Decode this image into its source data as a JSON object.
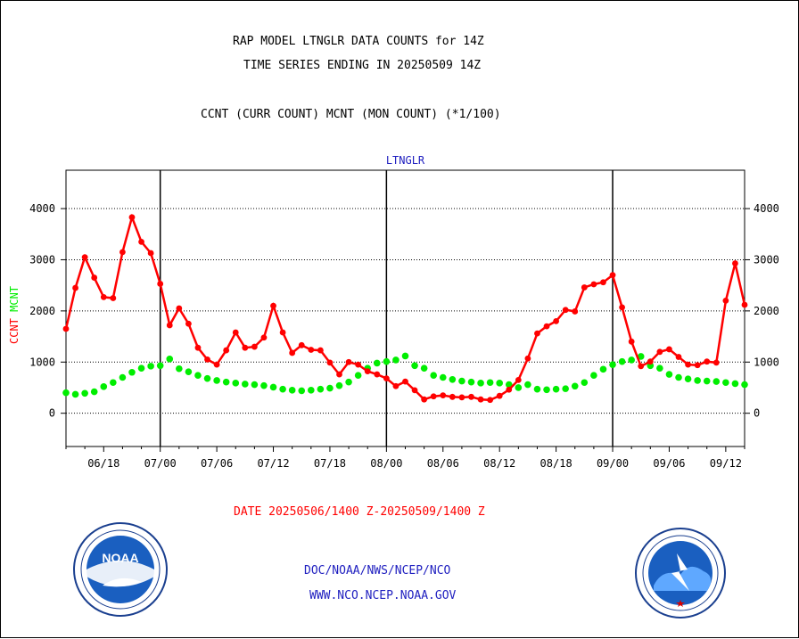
{
  "header": {
    "title_line1": "RAP MODEL LTNGLR DATA COUNTS for 14Z",
    "title_line2": "TIME SERIES ENDING IN 20250509 14Z",
    "subtitle": "CCNT (CURR COUNT) MCNT (MON COUNT) (*1/100)"
  },
  "footer": {
    "date_range": "DATE 20250506/1400 Z-20250509/1400 Z",
    "line1": "DOC/NOAA/NWS/NCEP/NCO",
    "line2": "WWW.NCO.NCEP.NOAA.GOV"
  },
  "logos": {
    "left": "noaa-logo",
    "right": "nws-logo",
    "left_text": "NOAA"
  },
  "chart_data": {
    "type": "line",
    "title": "LTNGLR",
    "ylabel_ccnt": "CCNT",
    "ylabel_mcnt": "MCNT",
    "x_tick_labels": [
      "06/18",
      "07/00",
      "07/06",
      "07/12",
      "07/18",
      "08/00",
      "08/06",
      "08/12",
      "08/18",
      "09/00",
      "09/06",
      "09/12"
    ],
    "y_ticks": [
      0,
      1000,
      2000,
      3000,
      4000
    ],
    "ylim": [
      -650,
      4750
    ],
    "x_start_hour": 14,
    "x_step_hours": 1,
    "day_boundaries_hours": [
      24,
      48,
      72
    ],
    "series": [
      {
        "name": "CCNT",
        "color": "#ff0000",
        "values": [
          1650,
          2450,
          3050,
          2650,
          2270,
          2250,
          3150,
          3830,
          3350,
          3130,
          2530,
          1720,
          2050,
          1750,
          1280,
          1050,
          950,
          1230,
          1580,
          1280,
          1300,
          1480,
          2100,
          1580,
          1180,
          1330,
          1240,
          1230,
          990,
          760,
          1000,
          950,
          820,
          760,
          680,
          530,
          620,
          450,
          270,
          330,
          350,
          320,
          310,
          320,
          270,
          260,
          340,
          460,
          650,
          1070,
          1560,
          1700,
          1800,
          2020,
          1990,
          2460,
          2520,
          2560,
          2700,
          2070,
          1400,
          920,
          1010,
          1200,
          1250,
          1100,
          950,
          940,
          1010,
          990,
          2200,
          2930,
          2120
        ]
      },
      {
        "name": "MCNT",
        "color": "#00ee00",
        "values": [
          400,
          370,
          390,
          420,
          520,
          600,
          700,
          800,
          880,
          920,
          930,
          1060,
          870,
          810,
          740,
          680,
          640,
          610,
          590,
          570,
          560,
          540,
          510,
          470,
          450,
          440,
          450,
          470,
          490,
          540,
          610,
          740,
          880,
          980,
          1010,
          1040,
          1120,
          930,
          880,
          740,
          700,
          660,
          630,
          610,
          590,
          600,
          590,
          560,
          500,
          560,
          470,
          460,
          470,
          480,
          530,
          600,
          740,
          860,
          950,
          1010,
          1040,
          1110,
          930,
          880,
          760,
          700,
          670,
          640,
          630,
          620,
          600,
          580,
          560
        ]
      }
    ],
    "grid": "horizontal dotted lines",
    "legend": "none"
  }
}
